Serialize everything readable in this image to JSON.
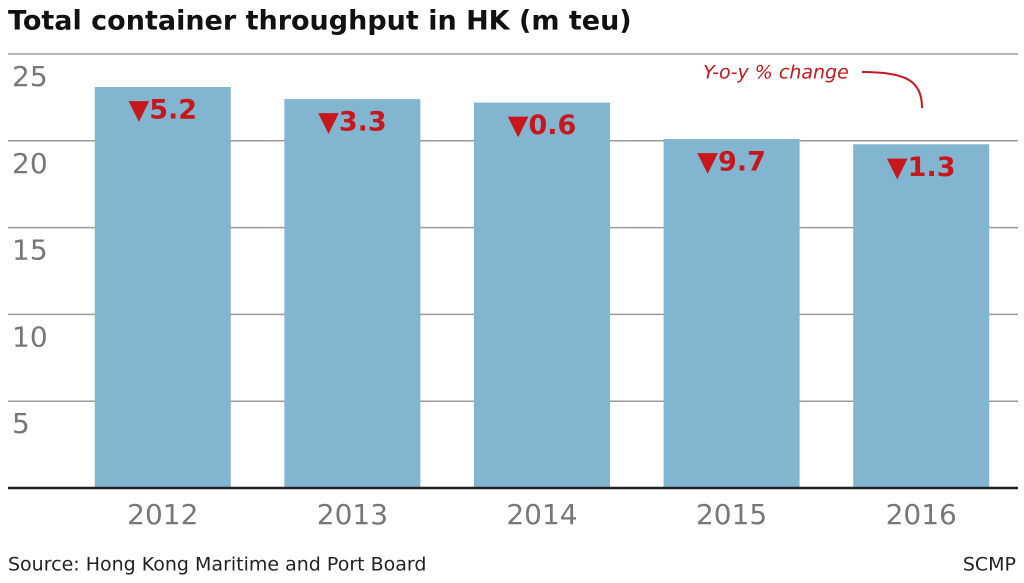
{
  "chart_data": {
    "type": "bar",
    "title": "Total container throughput in HK (m teu)",
    "categories": [
      "2012",
      "2013",
      "2014",
      "2015",
      "2016"
    ],
    "values": [
      23.1,
      22.4,
      22.2,
      20.1,
      19.8
    ],
    "color": "#82b5cf",
    "yoy_change": {
      "label": "Y-o-y % change",
      "values": [
        -5.2,
        -3.3,
        -0.6,
        -9.7,
        -1.3
      ],
      "value_labels": [
        "▼5.2",
        "▼3.3",
        "▼0.6",
        "▼9.7",
        "▼1.3"
      ]
    },
    "ylim": [
      0,
      25
    ],
    "yticks": [
      5,
      10,
      15,
      20,
      25
    ],
    "grid": true,
    "source": "Source: Hong Kong Maritime and Port Board",
    "credit": "SCMP"
  }
}
